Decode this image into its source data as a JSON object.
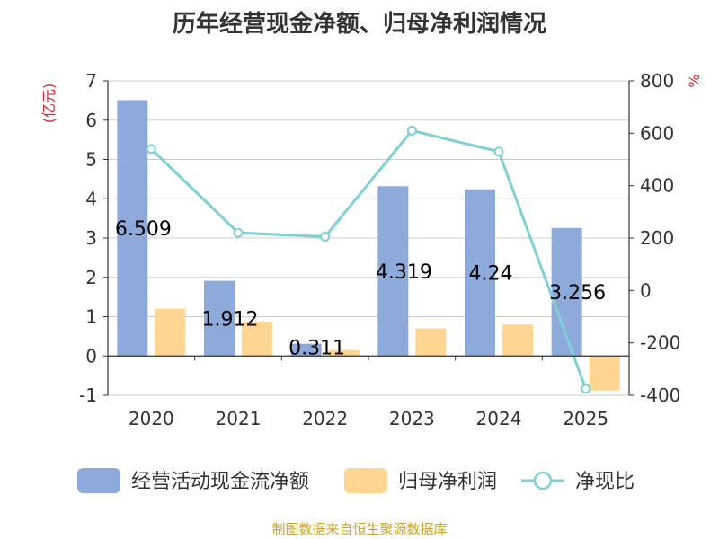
{
  "title": "历年经营现金净额、归母净利润情况",
  "footer": "制图数据来自恒生聚源数据库",
  "colors": {
    "cash_flow": "#8eaadb",
    "net_profit": "#ffd592",
    "ratio_line": "#7ed0d6",
    "unit_text": "#d9262b",
    "axis_text": "#333333",
    "grid": "#cccccc",
    "footer_text": "#c9a227"
  },
  "chart_data": {
    "type": "bar",
    "title": "历年经营现金净额、归母净利润情况",
    "categories": [
      "2020",
      "2021",
      "2022",
      "2023",
      "2024",
      "2025"
    ],
    "left_axis": {
      "unit": "(亿元)",
      "ylim": [
        -1,
        7
      ],
      "ticks": [
        -1,
        0,
        1,
        2,
        3,
        4,
        5,
        6,
        7
      ]
    },
    "right_axis": {
      "unit": "%",
      "ylim": [
        -400,
        800
      ],
      "ticks": [
        -400,
        -200,
        0,
        200,
        400,
        600,
        800
      ]
    },
    "series": [
      {
        "name": "经营活动现金流净额",
        "type": "bar",
        "axis": "left",
        "values": [
          6.509,
          1.912,
          0.311,
          4.319,
          4.24,
          3.256
        ],
        "data_labels": [
          "6.509",
          "1.912",
          "0.311",
          "4.319",
          "4.24",
          "3.256"
        ]
      },
      {
        "name": "归母净利润",
        "type": "bar",
        "axis": "left",
        "values": [
          1.2,
          0.87,
          0.15,
          0.7,
          0.8,
          -0.88
        ]
      },
      {
        "name": "净现比",
        "type": "line",
        "axis": "right",
        "values": [
          540,
          220,
          205,
          610,
          530,
          -375
        ]
      }
    ],
    "legend": {
      "position": "bottom",
      "items": [
        "经营活动现金流净额",
        "归母净利润",
        "净现比"
      ]
    },
    "grid": true
  }
}
